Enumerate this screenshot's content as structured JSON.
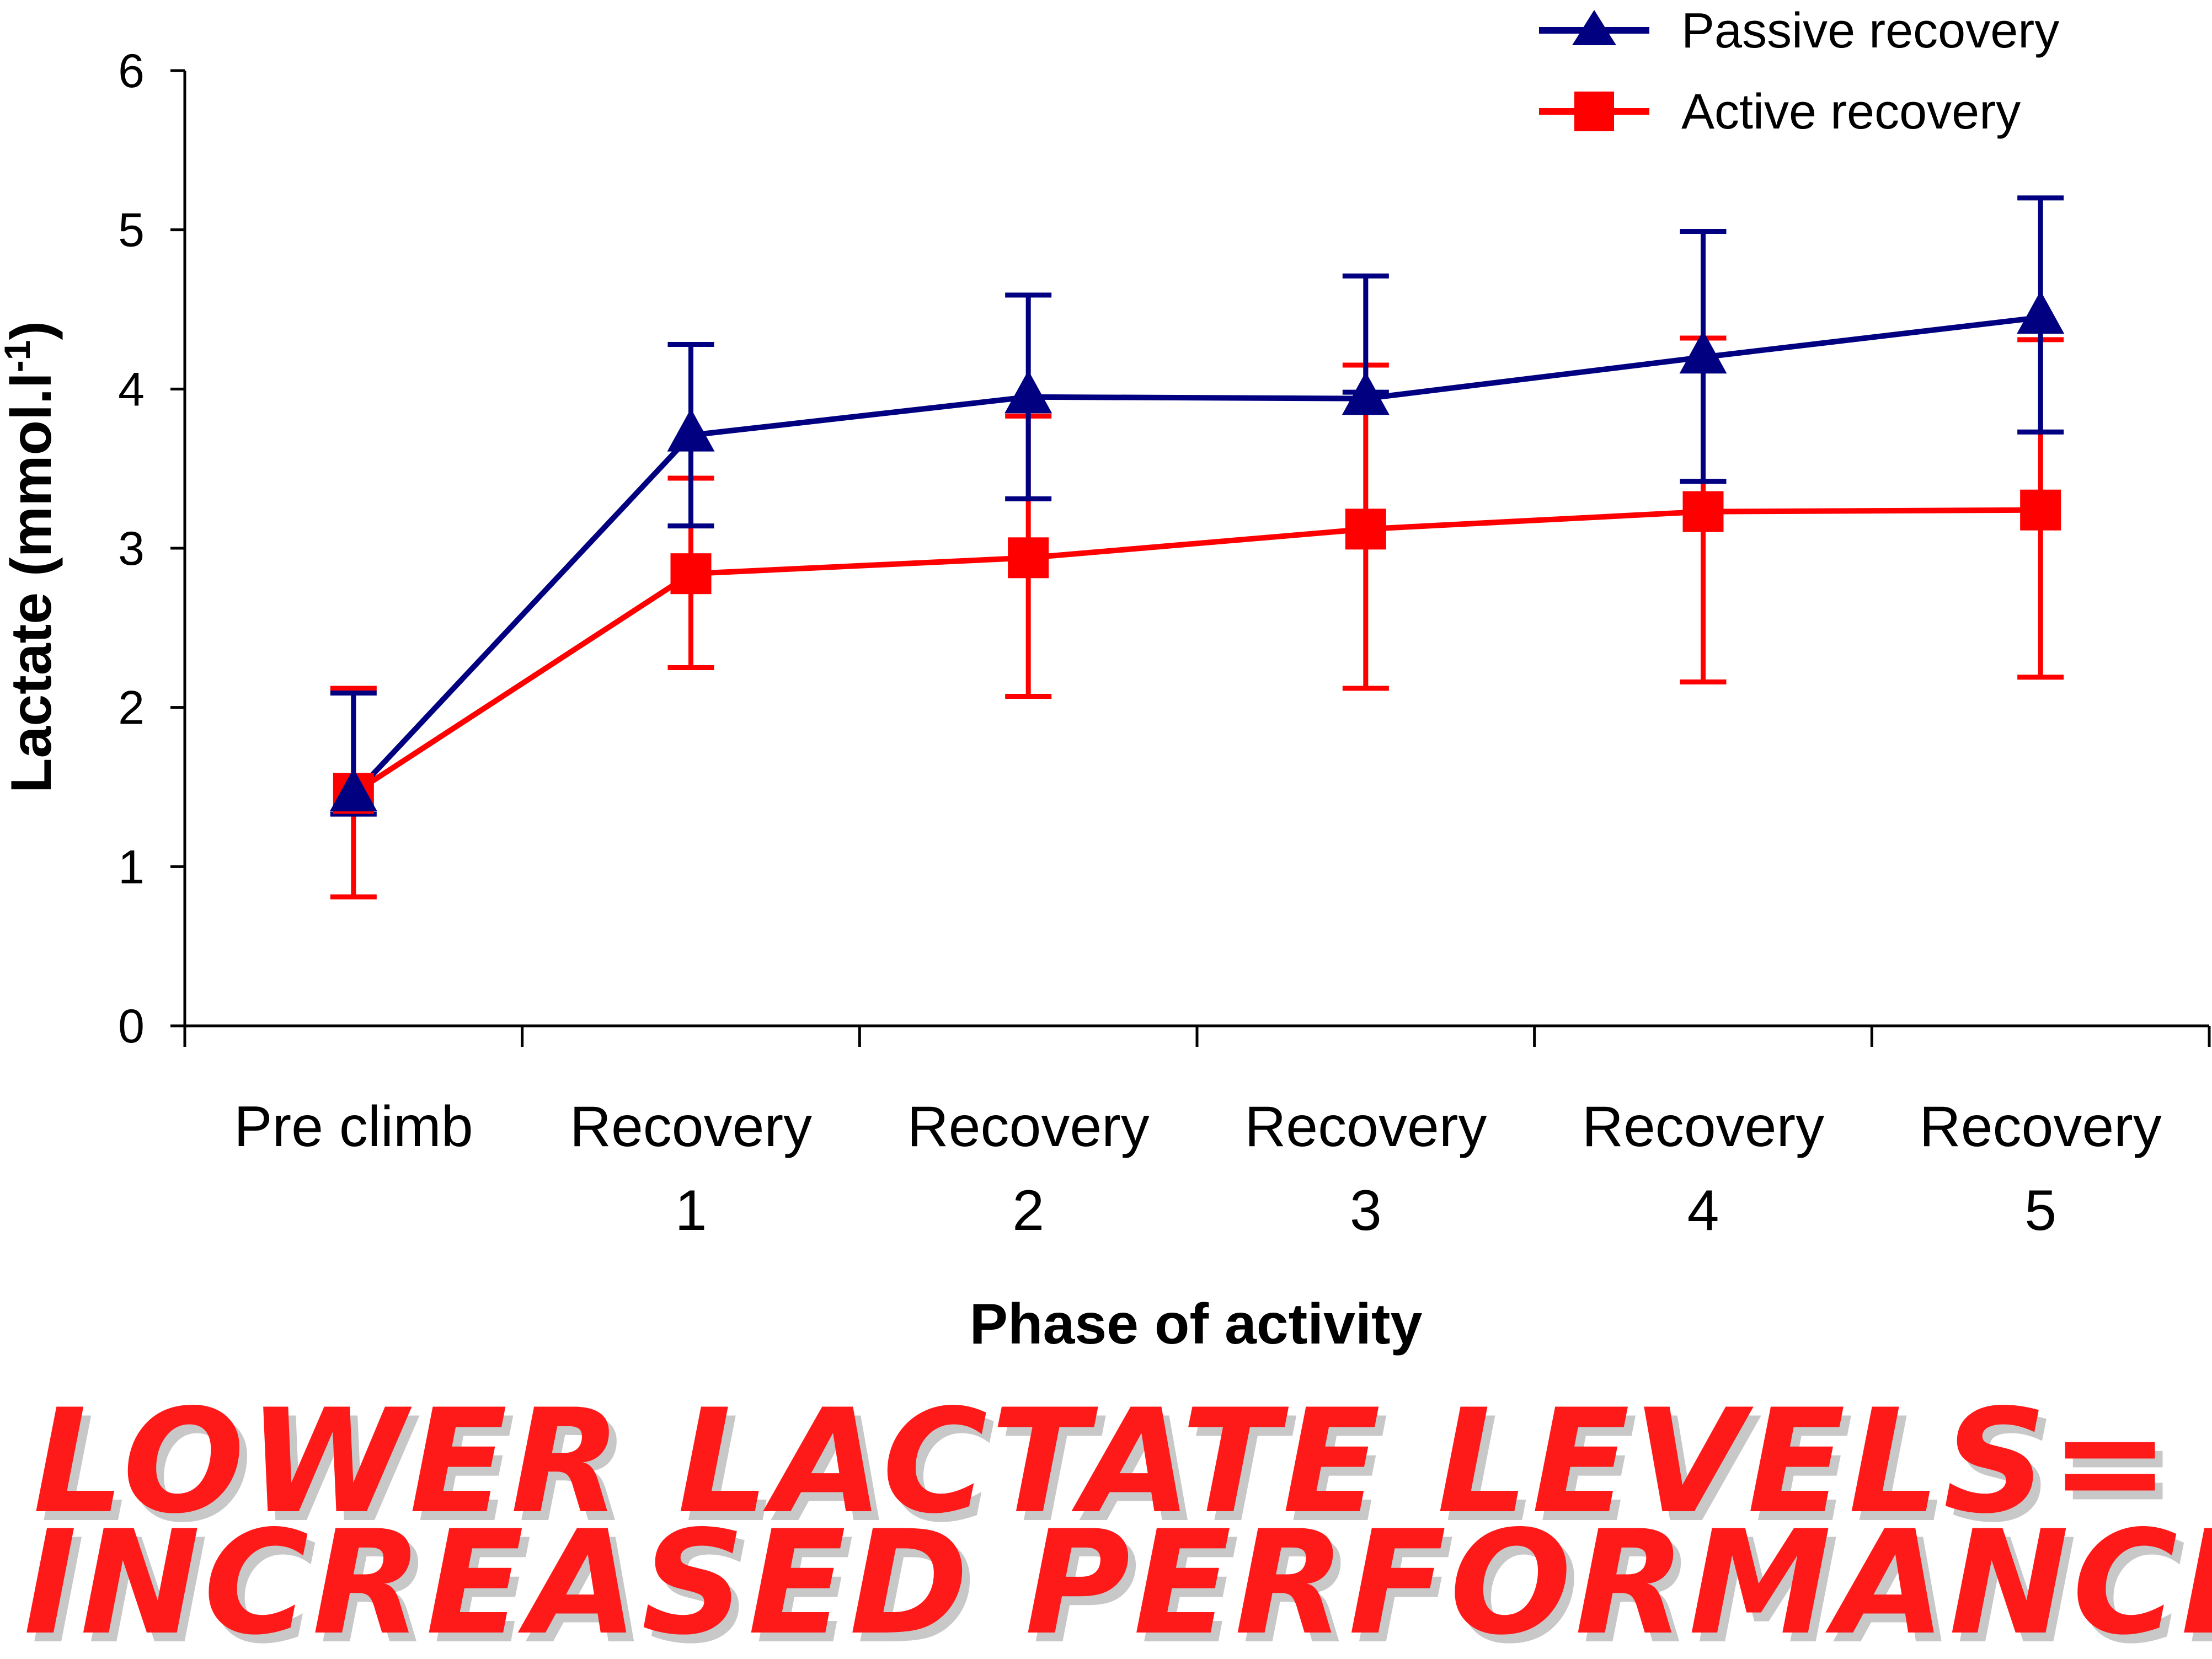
{
  "chart_data": {
    "type": "line",
    "title": "",
    "xlabel": "Phase of activity",
    "ylabel_main": "Lactate (mmol.l",
    "ylabel_sup": "-1",
    "ylabel_end": ")",
    "ylim": [
      0,
      6
    ],
    "yticks": [
      "0",
      "1",
      "2",
      "3",
      "4",
      "5",
      "6"
    ],
    "categories": [
      {
        "line1": "Pre climb",
        "line2": ""
      },
      {
        "line1": "Recovery",
        "line2": "1"
      },
      {
        "line1": "Recovery",
        "line2": "2"
      },
      {
        "line1": "Recovery",
        "line2": "3"
      },
      {
        "line1": "Recovery",
        "line2": "4"
      },
      {
        "line1": "Recovery",
        "line2": "5"
      }
    ],
    "legend_position": "top-right",
    "series": [
      {
        "name": "Passive recovery",
        "color": "#000080",
        "marker": "triangle",
        "values": [
          1.45,
          3.71,
          3.95,
          3.94,
          4.2,
          4.45
        ],
        "err_low": [
          1.33,
          3.14,
          3.31,
          3.98,
          3.42,
          3.73
        ],
        "err_high": [
          2.09,
          4.28,
          4.59,
          4.71,
          4.99,
          5.2
        ]
      },
      {
        "name": "Active recovery",
        "color": "#ff0000",
        "marker": "square",
        "values": [
          1.46,
          2.84,
          2.94,
          3.12,
          3.23,
          3.24
        ],
        "err_low": [
          0.81,
          2.25,
          2.07,
          2.12,
          2.16,
          2.19
        ],
        "err_high": [
          2.12,
          3.44,
          3.83,
          4.15,
          4.32,
          4.31
        ]
      }
    ]
  },
  "caption": {
    "line1": "LOWER LACTATE LEVELS=",
    "line2": "INCREASED PERFORMANCE"
  }
}
